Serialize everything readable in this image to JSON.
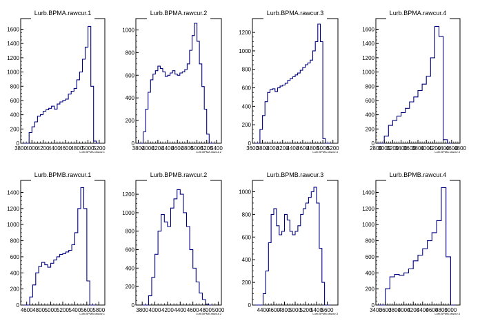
{
  "line_color": "#00007f",
  "chart_data": [
    {
      "type": "histogram",
      "title": "Lurb.BPMA.rawcur.1",
      "xlabel": "Lurb.BPMA.rawcur.1",
      "xlim": [
        3800,
        5300
      ],
      "ylim": [
        0,
        1750
      ],
      "xticks": [
        3800,
        4000,
        4200,
        4400,
        4600,
        4800,
        5000,
        5200
      ],
      "yticks": [
        0,
        200,
        400,
        600,
        800,
        1000,
        1200,
        1400,
        1600
      ],
      "x": [
        3800,
        3850,
        3900,
        3950,
        4000,
        4050,
        4100,
        4150,
        4200,
        4250,
        4300,
        4350,
        4400,
        4450,
        4500,
        4550,
        4600,
        4650,
        4700,
        4750,
        4800,
        4850,
        4900,
        4950,
        5000,
        5050,
        5100,
        5150
      ],
      "values": [
        0,
        0,
        0,
        150,
        230,
        300,
        380,
        400,
        450,
        470,
        490,
        520,
        480,
        550,
        580,
        600,
        620,
        690,
        730,
        770,
        890,
        1000,
        1180,
        1350,
        1640,
        800,
        30,
        0
      ]
    },
    {
      "type": "histogram",
      "title": "Lurb.BPMA.rawcur.2",
      "xlabel": "Lurb.BPMA.rawcur.2",
      "xlim": [
        3750,
        5500
      ],
      "ylim": [
        0,
        1100
      ],
      "xticks": [
        3800,
        4000,
        4200,
        4400,
        4600,
        4800,
        5000,
        5200,
        5400
      ],
      "yticks": [
        0,
        200,
        400,
        600,
        800,
        1000
      ],
      "x": [
        3800,
        3850,
        3900,
        3950,
        4000,
        4050,
        4100,
        4150,
        4200,
        4250,
        4300,
        4350,
        4400,
        4450,
        4500,
        4550,
        4600,
        4650,
        4700,
        4750,
        4800,
        4850,
        4900,
        4950,
        5000,
        5050,
        5100,
        5150,
        5200,
        5250,
        5300
      ],
      "values": [
        0,
        0,
        100,
        300,
        450,
        560,
        610,
        640,
        680,
        660,
        630,
        590,
        600,
        620,
        640,
        610,
        600,
        620,
        630,
        650,
        700,
        820,
        950,
        1060,
        900,
        700,
        500,
        300,
        80,
        0,
        0
      ]
    },
    {
      "type": "histogram",
      "title": "Lurb.BPMA.rawcur.3",
      "xlabel": "Lurb.BPMA.rawcur.3",
      "xlim": [
        3600,
        5300
      ],
      "ylim": [
        0,
        1350
      ],
      "xticks": [
        3600,
        3800,
        4000,
        4200,
        4400,
        4600,
        4800,
        5000,
        5200
      ],
      "yticks": [
        0,
        200,
        400,
        600,
        800,
        1000,
        1200
      ],
      "x": [
        3600,
        3650,
        3700,
        3750,
        3800,
        3850,
        3900,
        3950,
        4000,
        4050,
        4100,
        4150,
        4200,
        4250,
        4300,
        4350,
        4400,
        4450,
        4500,
        4550,
        4600,
        4650,
        4700,
        4750,
        4800,
        4850,
        4900,
        4950,
        5000,
        5050,
        5100
      ],
      "values": [
        0,
        0,
        0,
        150,
        300,
        450,
        550,
        580,
        590,
        560,
        600,
        620,
        630,
        650,
        680,
        700,
        720,
        740,
        760,
        790,
        820,
        850,
        870,
        900,
        1000,
        1100,
        1290,
        1100,
        50,
        0,
        0
      ]
    },
    {
      "type": "histogram",
      "title": "Lurb.BPMA.rawcur.4",
      "xlabel": "Lurb.BPMA.rawcur.4",
      "xlim": [
        2800,
        4800
      ],
      "ylim": [
        0,
        1750
      ],
      "xticks": [
        2800,
        3000,
        3200,
        3400,
        3600,
        3800,
        4000,
        4200,
        4400,
        4600,
        4800
      ],
      "yticks": [
        0,
        200,
        400,
        600,
        800,
        1000,
        1200,
        1400,
        1600
      ],
      "x": [
        2800,
        2900,
        3000,
        3100,
        3200,
        3300,
        3400,
        3500,
        3600,
        3700,
        3800,
        3900,
        4000,
        4100,
        4200,
        4300,
        4400,
        4500
      ],
      "values": [
        0,
        0,
        100,
        250,
        320,
        380,
        430,
        490,
        580,
        650,
        740,
        830,
        940,
        1200,
        1640,
        1500,
        50,
        0
      ]
    },
    {
      "type": "histogram",
      "title": "Lurb.BPMB.rawcur.1",
      "xlabel": "Lurb.BPMB.rawcur.1",
      "xlim": [
        4500,
        5900
      ],
      "ylim": [
        0,
        1550
      ],
      "xticks": [
        4600,
        4800,
        5000,
        5200,
        5400,
        5600,
        5800
      ],
      "yticks": [
        0,
        200,
        400,
        600,
        800,
        1000,
        1200,
        1400
      ],
      "x": [
        4500,
        4550,
        4600,
        4650,
        4700,
        4750,
        4800,
        4850,
        4900,
        4950,
        5000,
        5050,
        5100,
        5150,
        5200,
        5250,
        5300,
        5350,
        5400,
        5450,
        5500,
        5550,
        5600,
        5650,
        5700
      ],
      "values": [
        0,
        0,
        0,
        100,
        250,
        400,
        480,
        530,
        500,
        470,
        520,
        560,
        600,
        630,
        640,
        660,
        680,
        750,
        900,
        1200,
        1460,
        1200,
        300,
        0,
        0
      ]
    },
    {
      "type": "histogram",
      "title": "Lurb.BPMB.rawcur.2",
      "xlabel": "Lurb.BPMB.rawcur.2",
      "xlim": [
        3700,
        5050
      ],
      "ylim": [
        0,
        1350
      ],
      "xticks": [
        3800,
        4000,
        4200,
        4400,
        4600,
        4800,
        5000
      ],
      "yticks": [
        0,
        200,
        400,
        600,
        800,
        1000,
        1200
      ],
      "x": [
        3800,
        3850,
        3900,
        3950,
        4000,
        4050,
        4100,
        4150,
        4200,
        4250,
        4300,
        4350,
        4400,
        4450,
        4500,
        4550,
        4600,
        4650,
        4700,
        4750,
        4800,
        4850
      ],
      "values": [
        0,
        0,
        100,
        300,
        550,
        800,
        980,
        900,
        850,
        1050,
        1150,
        1250,
        1200,
        1000,
        850,
        600,
        400,
        250,
        130,
        60,
        10,
        0
      ]
    },
    {
      "type": "histogram",
      "title": "Lurb.BPMB.rawcur.3",
      "xlabel": "Lurb.BPMB.rawcur.3",
      "xlim": [
        4200,
        5800
      ],
      "ylim": [
        0,
        1100
      ],
      "xticks": [
        4400,
        4600,
        4800,
        5000,
        5200,
        5400,
        5600
      ],
      "yticks": [
        0,
        200,
        400,
        600,
        800,
        1000
      ],
      "x": [
        4200,
        4250,
        4300,
        4350,
        4400,
        4450,
        4500,
        4550,
        4600,
        4650,
        4700,
        4750,
        4800,
        4850,
        4900,
        4950,
        5000,
        5050,
        5100,
        5150,
        5200,
        5250,
        5300,
        5350,
        5400,
        5450,
        5500,
        5550,
        5600
      ],
      "values": [
        0,
        0,
        0,
        0,
        100,
        300,
        550,
        800,
        850,
        700,
        620,
        650,
        800,
        750,
        650,
        620,
        650,
        700,
        800,
        850,
        900,
        950,
        1000,
        1040,
        900,
        500,
        200,
        0,
        0
      ]
    },
    {
      "type": "histogram",
      "title": "Lurb.BPMB.rawcur.4",
      "xlabel": "Lurb.BPMB.rawcur.4",
      "xlim": [
        3400,
        5200
      ],
      "ylim": [
        0,
        1550
      ],
      "xticks": [
        3400,
        3600,
        3800,
        4000,
        4200,
        4400,
        4600,
        4800,
        5000
      ],
      "yticks": [
        0,
        200,
        400,
        600,
        800,
        1000,
        1200,
        1400
      ],
      "x": [
        3400,
        3500,
        3600,
        3700,
        3800,
        3900,
        4000,
        4100,
        4200,
        4300,
        4400,
        4500,
        4600,
        4700,
        4800,
        4900,
        5000
      ],
      "values": [
        0,
        0,
        200,
        350,
        380,
        370,
        400,
        450,
        550,
        620,
        700,
        800,
        900,
        1050,
        1460,
        600,
        0
      ]
    }
  ]
}
